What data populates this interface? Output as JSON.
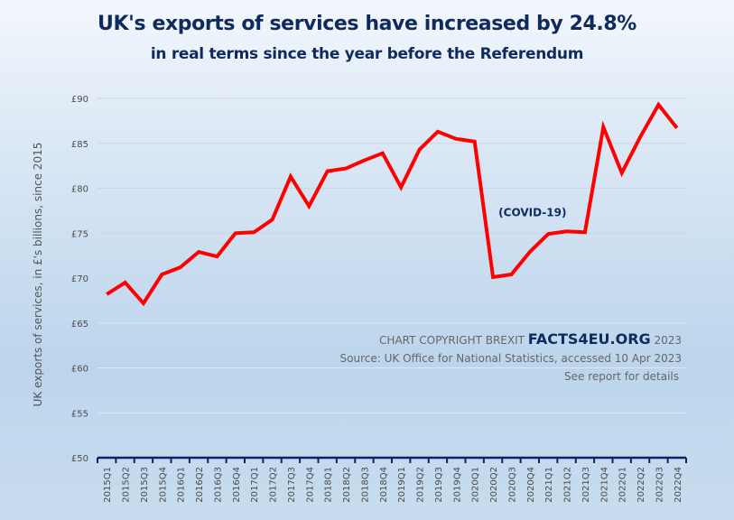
{
  "chart_data": {
    "type": "line",
    "title": "UK's exports of services have increased by 24.8%",
    "subtitle": "in real terms since the year before the Referendum",
    "xlabel": "",
    "ylabel": "UK exports of services, in £'s billions, since 2015",
    "ylim": [
      50,
      90
    ],
    "yticks": [
      50,
      55,
      60,
      65,
      70,
      75,
      80,
      85,
      90
    ],
    "ytick_labels": [
      "£50",
      "£55",
      "£60",
      "£65",
      "£70",
      "£75",
      "£80",
      "£85",
      "£90"
    ],
    "grid": true,
    "legend": "none",
    "line_color": "#ff0000",
    "categories": [
      "2015Q1",
      "2015Q2",
      "2015Q3",
      "2015Q4",
      "2016Q1",
      "2016Q2",
      "2016Q3",
      "2016Q4",
      "2017Q1",
      "2017Q2",
      "2017Q3",
      "2017Q4",
      "2018Q1",
      "2018Q2",
      "2018Q3",
      "2018Q4",
      "2019Q1",
      "2019Q2",
      "2019Q3",
      "2019Q4",
      "2020Q1",
      "2020Q2",
      "2020Q3",
      "2020Q4",
      "2021Q1",
      "2021Q2",
      "2021Q3",
      "2021Q4",
      "2022Q1",
      "2022Q2",
      "2022Q3",
      "2022Q4"
    ],
    "series": [
      {
        "name": "UK exports of services",
        "values": [
          68.2,
          69.5,
          67.2,
          70.4,
          71.2,
          72.9,
          72.4,
          75.0,
          75.1,
          76.5,
          81.3,
          78.0,
          81.9,
          82.2,
          83.1,
          83.9,
          80.1,
          84.3,
          86.3,
          85.5,
          85.2,
          70.1,
          70.4,
          72.9,
          74.9,
          75.2,
          75.1,
          86.8,
          81.7,
          85.7,
          89.3,
          86.7
        ]
      }
    ],
    "annotations": [
      {
        "text": "(COVID-19)",
        "at_category": "2020Q4",
        "value": 77.3
      }
    ]
  },
  "credits": {
    "copyright_prefix": "CHART COPYRIGHT BREXIT ",
    "brand": "FACTS4EU.ORG",
    "copyright_year": " 2023",
    "source": "Source: UK Office for National Statistics, accessed 10 Apr 2023",
    "note": "See report for details"
  }
}
